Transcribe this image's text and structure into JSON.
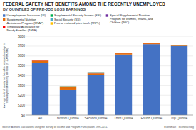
{
  "chart_data": {
    "type": "bar",
    "stacked": true,
    "title": "FEDERAL SAFETY NET BENEFITS AMONG THE RECENTLY UNEMPLOYED",
    "subtitle": "BY QUINTILES OF PRE-JOB LOSS EARNINGS",
    "categories": [
      "All",
      "Bottom Quintile",
      "Second Quintile",
      "Third Quintile",
      "Fourth Quintile",
      "Top Quintile"
    ],
    "series": [
      {
        "name": "Unemployment Insurance (UI)",
        "color": "#4472C4",
        "values": [
          530,
          260,
          405,
          615,
          720,
          700
        ]
      },
      {
        "name": "Supplemental Nutrition\nAssistance Program (SNAP)",
        "color": "#E36C09",
        "values": [
          22,
          22,
          18,
          12,
          8,
          5
        ]
      },
      {
        "name": "Temporary Assistance for\nNeedy Families (TANF)",
        "color": "#FF0000",
        "values": [
          3,
          5,
          2,
          1,
          1,
          1
        ]
      },
      {
        "name": "Supplemental Security Income (SSI)",
        "color": "#00B050",
        "values": [
          2,
          3,
          2,
          1,
          1,
          1
        ]
      },
      {
        "name": "Social Security (SS)",
        "color": "#4BACC6",
        "values": [
          2,
          2,
          2,
          2,
          1,
          1
        ]
      },
      {
        "name": "Free or reduced price lunch (FRPL)",
        "color": "#FFC000",
        "values": [
          1,
          2,
          1,
          1,
          1,
          1
        ]
      },
      {
        "name": "Special Supplemental Nutrition\nProgram for Women, Infants, and\nChildren (WIC)",
        "color": "#7030A0",
        "values": [
          1,
          1,
          1,
          1,
          1,
          1
        ]
      }
    ],
    "ylabel": "Average federal safety net benefits received weekly in\nthe two years following job loss (in 2009 USD)",
    "ylim": [
      0,
      800
    ],
    "yticks": [
      {
        "value": 0,
        "label": "$0"
      },
      {
        "value": 100,
        "label": "$100"
      },
      {
        "value": 200,
        "label": "$200"
      },
      {
        "value": 300,
        "label": "$300"
      },
      {
        "value": 400,
        "label": "$400"
      },
      {
        "value": 500,
        "label": "$500"
      },
      {
        "value": 600,
        "label": "$600"
      },
      {
        "value": 700,
        "label": "$700"
      },
      {
        "value": 800,
        "label": "$800"
      }
    ],
    "grid": true,
    "legend": "top",
    "annotations": [
      "Source: Authors' calculations using the Survey of Income and Program Participation 1996-2011.",
      "EconoFact    econofact.org"
    ]
  }
}
